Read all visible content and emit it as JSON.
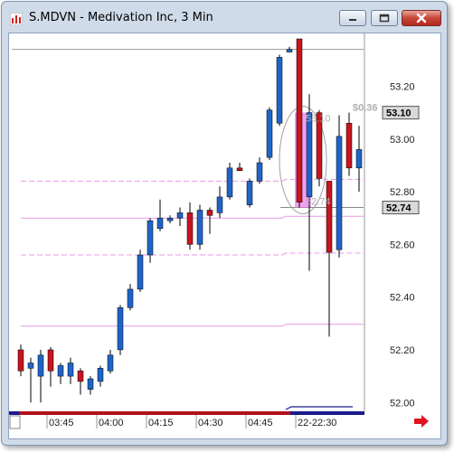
{
  "window": {
    "title": "S.MDVN - Medivation Inc, 3 Min",
    "app_icon": "chart-app-icon",
    "buttons": [
      "minimize-icon",
      "maximize-icon",
      "close-icon"
    ]
  },
  "chart_data": {
    "type": "candlestick",
    "title": "S.MDVN - Medivation Inc, 3 Min",
    "ylim": [
      51.97,
      53.38
    ],
    "y_ticks": [
      52.0,
      52.2,
      52.4,
      52.6,
      52.8,
      53.0,
      53.2
    ],
    "y_tick_labels": [
      "52.00",
      "52.20",
      "52.40",
      "52.60",
      "52.80",
      "53.00",
      "53.20"
    ],
    "x_tick_labels": [
      "03:45",
      "04:00",
      "04:15",
      "04:30",
      "04:45",
      "22-22:30"
    ],
    "x_tick_index": [
      3,
      8,
      13,
      18,
      23,
      28
    ],
    "colors": {
      "up": "#1f64c8",
      "down": "#c8141e",
      "ref_line": "#e89ae8",
      "axis_bg": "#d9d9d9"
    },
    "candles": [
      {
        "o": 52.2,
        "h": 52.22,
        "l": 52.1,
        "c": 52.12
      },
      {
        "o": 52.13,
        "h": 52.17,
        "l": 52.0,
        "c": 52.15
      },
      {
        "o": 52.1,
        "h": 52.2,
        "l": 52.0,
        "c": 52.18
      },
      {
        "o": 52.2,
        "h": 52.21,
        "l": 52.06,
        "c": 52.12
      },
      {
        "o": 52.1,
        "h": 52.15,
        "l": 52.07,
        "c": 52.14
      },
      {
        "o": 52.1,
        "h": 52.17,
        "l": 52.07,
        "c": 52.15
      },
      {
        "o": 52.12,
        "h": 52.13,
        "l": 52.03,
        "c": 52.08
      },
      {
        "o": 52.05,
        "h": 52.1,
        "l": 52.03,
        "c": 52.09
      },
      {
        "o": 52.08,
        "h": 52.14,
        "l": 52.06,
        "c": 52.13
      },
      {
        "o": 52.12,
        "h": 52.2,
        "l": 52.11,
        "c": 52.18
      },
      {
        "o": 52.2,
        "h": 52.37,
        "l": 52.18,
        "c": 52.36
      },
      {
        "o": 52.36,
        "h": 52.45,
        "l": 52.35,
        "c": 52.43
      },
      {
        "o": 52.43,
        "h": 52.58,
        "l": 52.42,
        "c": 52.56
      },
      {
        "o": 52.56,
        "h": 52.7,
        "l": 52.53,
        "c": 52.69
      },
      {
        "o": 52.66,
        "h": 52.77,
        "l": 52.65,
        "c": 52.7
      },
      {
        "o": 52.69,
        "h": 52.71,
        "l": 52.68,
        "c": 52.7
      },
      {
        "o": 52.7,
        "h": 52.74,
        "l": 52.67,
        "c": 52.72
      },
      {
        "o": 52.72,
        "h": 52.76,
        "l": 52.58,
        "c": 52.6
      },
      {
        "o": 52.6,
        "h": 52.75,
        "l": 52.58,
        "c": 52.73
      },
      {
        "o": 52.73,
        "h": 52.74,
        "l": 52.64,
        "c": 52.71
      },
      {
        "o": 52.72,
        "h": 52.82,
        "l": 52.7,
        "c": 52.78
      },
      {
        "o": 52.78,
        "h": 52.91,
        "l": 52.77,
        "c": 52.89
      },
      {
        "o": 52.89,
        "h": 52.91,
        "l": 52.88,
        "c": 52.88
      },
      {
        "o": 52.75,
        "h": 52.85,
        "l": 52.74,
        "c": 52.84
      },
      {
        "o": 52.84,
        "h": 52.93,
        "l": 52.83,
        "c": 52.91
      },
      {
        "o": 52.93,
        "h": 53.12,
        "l": 52.92,
        "c": 53.11
      },
      {
        "o": 53.06,
        "h": 53.32,
        "l": 53.05,
        "c": 53.31
      },
      {
        "o": 53.33,
        "h": 53.35,
        "l": 53.33,
        "c": 53.34
      },
      {
        "o": 53.38,
        "h": 53.38,
        "l": 52.74,
        "c": 52.76
      },
      {
        "o": 52.78,
        "h": 53.17,
        "l": 52.5,
        "c": 53.1
      },
      {
        "o": 53.1,
        "h": 53.11,
        "l": 52.82,
        "c": 52.85
      },
      {
        "o": 52.84,
        "h": 52.84,
        "l": 52.25,
        "c": 52.57
      },
      {
        "o": 52.58,
        "h": 53.09,
        "l": 52.55,
        "c": 53.01
      },
      {
        "o": 53.06,
        "h": 53.1,
        "l": 52.86,
        "c": 52.89
      },
      {
        "o": 52.89,
        "h": 53.05,
        "l": 52.8,
        "c": 52.96
      }
    ],
    "reference_lines": [
      52.84,
      52.7,
      52.56,
      52.29
    ],
    "reference_line_styles": [
      "dashed",
      "solid",
      "dashed",
      "solid"
    ],
    "top_line_value": 53.34,
    "price_markers": [
      {
        "value": 53.1,
        "label": "53.10"
      },
      {
        "value": 52.74,
        "label": "52.74"
      }
    ],
    "range_annotation": {
      "high_label": "53.10",
      "low_label": "52.74",
      "change_label": "$0.36"
    }
  }
}
